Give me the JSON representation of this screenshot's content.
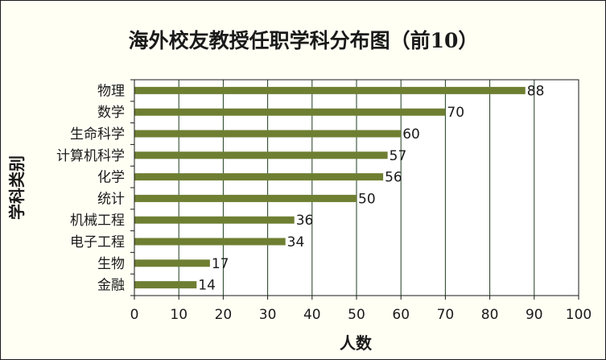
{
  "chart_data": {
    "type": "bar",
    "orientation": "horizontal",
    "title": "海外校友教授任职学科分布图（前10）",
    "xlabel": "人数",
    "ylabel": "学科类别",
    "categories": [
      "物理",
      "数学",
      "生命科学",
      "计算机科学",
      "化学",
      "统计",
      "机械工程",
      "电子工程",
      "生物",
      "金融"
    ],
    "values": [
      88,
      70,
      60,
      57,
      56,
      50,
      36,
      34,
      17,
      14
    ],
    "xlim": [
      0,
      100
    ],
    "xticks": [
      0,
      10,
      20,
      30,
      40,
      50,
      60,
      70,
      80,
      90,
      100
    ],
    "grid": "vertical",
    "legend": "none",
    "colors": {
      "bar": "#6e7f32",
      "grid": "#1f3d1f",
      "plot_background": "#ffffff",
      "frame_background": "#fffff4"
    }
  }
}
